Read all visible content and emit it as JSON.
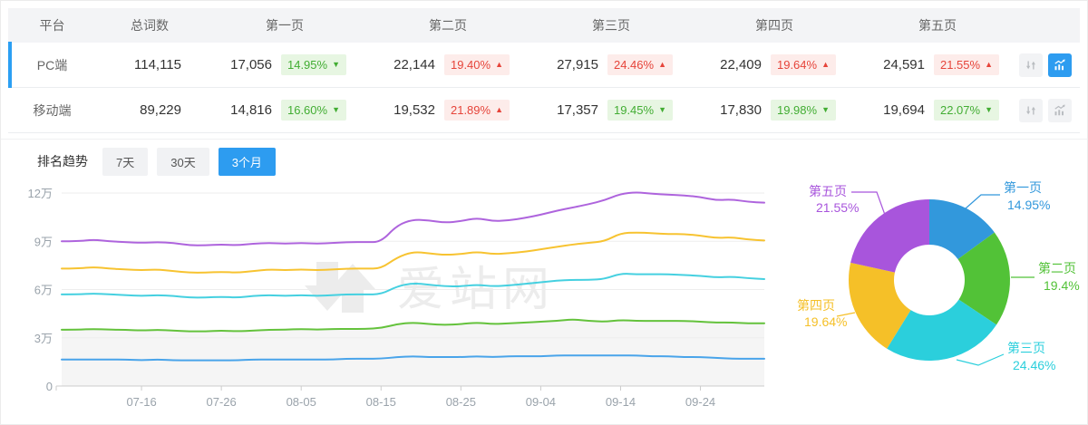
{
  "table": {
    "columns": [
      "平台",
      "总词数",
      "第一页",
      "第二页",
      "第三页",
      "第四页",
      "第五页"
    ],
    "rows": [
      {
        "platform": "PC端",
        "total": "114,115",
        "selected": true,
        "pages": [
          {
            "value": "17,056",
            "pct": "14.95%",
            "dir": "down"
          },
          {
            "value": "22,144",
            "pct": "19.40%",
            "dir": "up"
          },
          {
            "value": "27,915",
            "pct": "24.46%",
            "dir": "up"
          },
          {
            "value": "22,409",
            "pct": "19.64%",
            "dir": "up"
          },
          {
            "value": "24,591",
            "pct": "21.55%",
            "dir": "up"
          }
        ]
      },
      {
        "platform": "移动端",
        "total": "89,229",
        "selected": false,
        "pages": [
          {
            "value": "14,816",
            "pct": "16.60%",
            "dir": "down"
          },
          {
            "value": "19,532",
            "pct": "21.89%",
            "dir": "up"
          },
          {
            "value": "17,357",
            "pct": "19.45%",
            "dir": "down"
          },
          {
            "value": "17,830",
            "pct": "19.98%",
            "dir": "down"
          },
          {
            "value": "19,694",
            "pct": "22.07%",
            "dir": "down"
          }
        ]
      }
    ]
  },
  "trend": {
    "label": "排名趋势",
    "tabs": [
      {
        "label": "7天",
        "active": false
      },
      {
        "label": "30天",
        "active": false
      },
      {
        "label": "3个月",
        "active": true
      }
    ]
  },
  "watermark": "爱站网",
  "colors": {
    "accent": "#2d9cf0",
    "rise_red": "#e6443a",
    "rise_bg": "#fdecea",
    "fall_green": "#42ad33",
    "fall_bg": "#e7f6e2",
    "selected_row_bar": "#2b9ff3"
  },
  "chart_data": [
    {
      "type": "line",
      "title": "排名趋势（3个月）",
      "unit": "万 (10,000 keywords)",
      "ylim": [
        0,
        120000
      ],
      "grid": true,
      "legend": false,
      "y_ticks": {
        "values_wan": [
          0,
          3,
          6,
          9,
          12
        ],
        "labels": [
          "0",
          "3万",
          "6万",
          "9万",
          "12万"
        ]
      },
      "x_ticks": {
        "days": [
          10,
          20,
          30,
          40,
          50,
          60,
          70,
          80
        ],
        "labels": [
          "07-16",
          "07-26",
          "08-05",
          "08-15",
          "08-25",
          "09-04",
          "09-14",
          "09-24"
        ]
      },
      "x_range_days": [
        0,
        88
      ],
      "x_days": [
        0,
        2,
        4,
        6,
        8,
        10,
        12,
        14,
        16,
        18,
        20,
        22,
        24,
        26,
        28,
        30,
        32,
        34,
        36,
        38,
        40,
        42,
        44,
        46,
        48,
        50,
        52,
        54,
        56,
        58,
        60,
        62,
        64,
        66,
        68,
        70,
        72,
        74,
        76,
        78,
        80,
        82,
        84,
        86,
        88
      ],
      "series": [
        {
          "name": "line-blue",
          "color": "#49a4ea",
          "fill_under": false,
          "values_wan": [
            1.65,
            1.65,
            1.65,
            1.65,
            1.65,
            1.6,
            1.65,
            1.6,
            1.6,
            1.6,
            1.6,
            1.6,
            1.65,
            1.65,
            1.65,
            1.65,
            1.65,
            1.65,
            1.7,
            1.7,
            1.7,
            1.8,
            1.85,
            1.8,
            1.8,
            1.8,
            1.85,
            1.8,
            1.85,
            1.85,
            1.85,
            1.9,
            1.9,
            1.9,
            1.9,
            1.9,
            1.9,
            1.85,
            1.85,
            1.8,
            1.8,
            1.75,
            1.7,
            1.7,
            1.7
          ]
        },
        {
          "name": "line-green",
          "color": "#64c23c",
          "fill_under": true,
          "values_wan": [
            3.5,
            3.5,
            3.55,
            3.5,
            3.5,
            3.45,
            3.5,
            3.45,
            3.4,
            3.4,
            3.45,
            3.4,
            3.45,
            3.5,
            3.5,
            3.55,
            3.5,
            3.55,
            3.55,
            3.55,
            3.6,
            3.85,
            3.95,
            3.85,
            3.8,
            3.85,
            3.95,
            3.85,
            3.9,
            3.95,
            4.0,
            4.05,
            4.15,
            4.05,
            4.0,
            4.1,
            4.05,
            4.05,
            4.05,
            4.05,
            4.0,
            3.95,
            3.95,
            3.9,
            3.9
          ]
        },
        {
          "name": "line-cyan",
          "color": "#45d0e0",
          "fill_under": false,
          "values_wan": [
            5.7,
            5.7,
            5.75,
            5.7,
            5.65,
            5.6,
            5.65,
            5.6,
            5.5,
            5.5,
            5.55,
            5.5,
            5.6,
            5.65,
            5.6,
            5.65,
            5.6,
            5.65,
            5.7,
            5.7,
            5.7,
            6.2,
            6.4,
            6.3,
            6.2,
            6.2,
            6.3,
            6.2,
            6.25,
            6.35,
            6.45,
            6.55,
            6.6,
            6.6,
            6.65,
            7.0,
            6.95,
            6.95,
            6.95,
            6.9,
            6.85,
            6.75,
            6.8,
            6.7,
            6.65
          ]
        },
        {
          "name": "line-yellow",
          "color": "#f7c331",
          "fill_under": false,
          "values_wan": [
            7.3,
            7.3,
            7.4,
            7.3,
            7.25,
            7.2,
            7.25,
            7.15,
            7.05,
            7.05,
            7.1,
            7.05,
            7.15,
            7.25,
            7.2,
            7.25,
            7.2,
            7.25,
            7.3,
            7.3,
            7.3,
            8.0,
            8.35,
            8.25,
            8.15,
            8.2,
            8.35,
            8.2,
            8.25,
            8.35,
            8.5,
            8.65,
            8.8,
            8.9,
            9.0,
            9.5,
            9.55,
            9.5,
            9.45,
            9.45,
            9.35,
            9.2,
            9.25,
            9.1,
            9.05
          ]
        },
        {
          "name": "line-purple",
          "color": "#ae64dd",
          "fill_under": false,
          "values_wan": [
            9.0,
            9.0,
            9.1,
            9.0,
            8.95,
            8.9,
            8.95,
            8.9,
            8.75,
            8.75,
            8.8,
            8.75,
            8.85,
            8.9,
            8.85,
            8.9,
            8.85,
            8.9,
            8.95,
            8.95,
            8.95,
            10.0,
            10.35,
            10.3,
            10.15,
            10.25,
            10.45,
            10.25,
            10.3,
            10.45,
            10.65,
            10.9,
            11.1,
            11.3,
            11.55,
            11.95,
            12.05,
            11.95,
            11.9,
            11.85,
            11.75,
            11.55,
            11.6,
            11.45,
            11.4
          ]
        }
      ]
    },
    {
      "type": "pie",
      "donut": true,
      "start": "top",
      "direction": "clockwise",
      "labels": [
        "第一页",
        "第二页",
        "第三页",
        "第四页",
        "第五页"
      ],
      "values_pct": [
        14.95,
        19.4,
        24.46,
        19.64,
        21.55
      ],
      "display_pcts": [
        "14.95%",
        "19.4%",
        "24.46%",
        "19.64%",
        "21.55%"
      ],
      "colors": [
        "#3298dc",
        "#52c237",
        "#2bcfdc",
        "#f5c028",
        "#a855dc"
      ]
    }
  ]
}
